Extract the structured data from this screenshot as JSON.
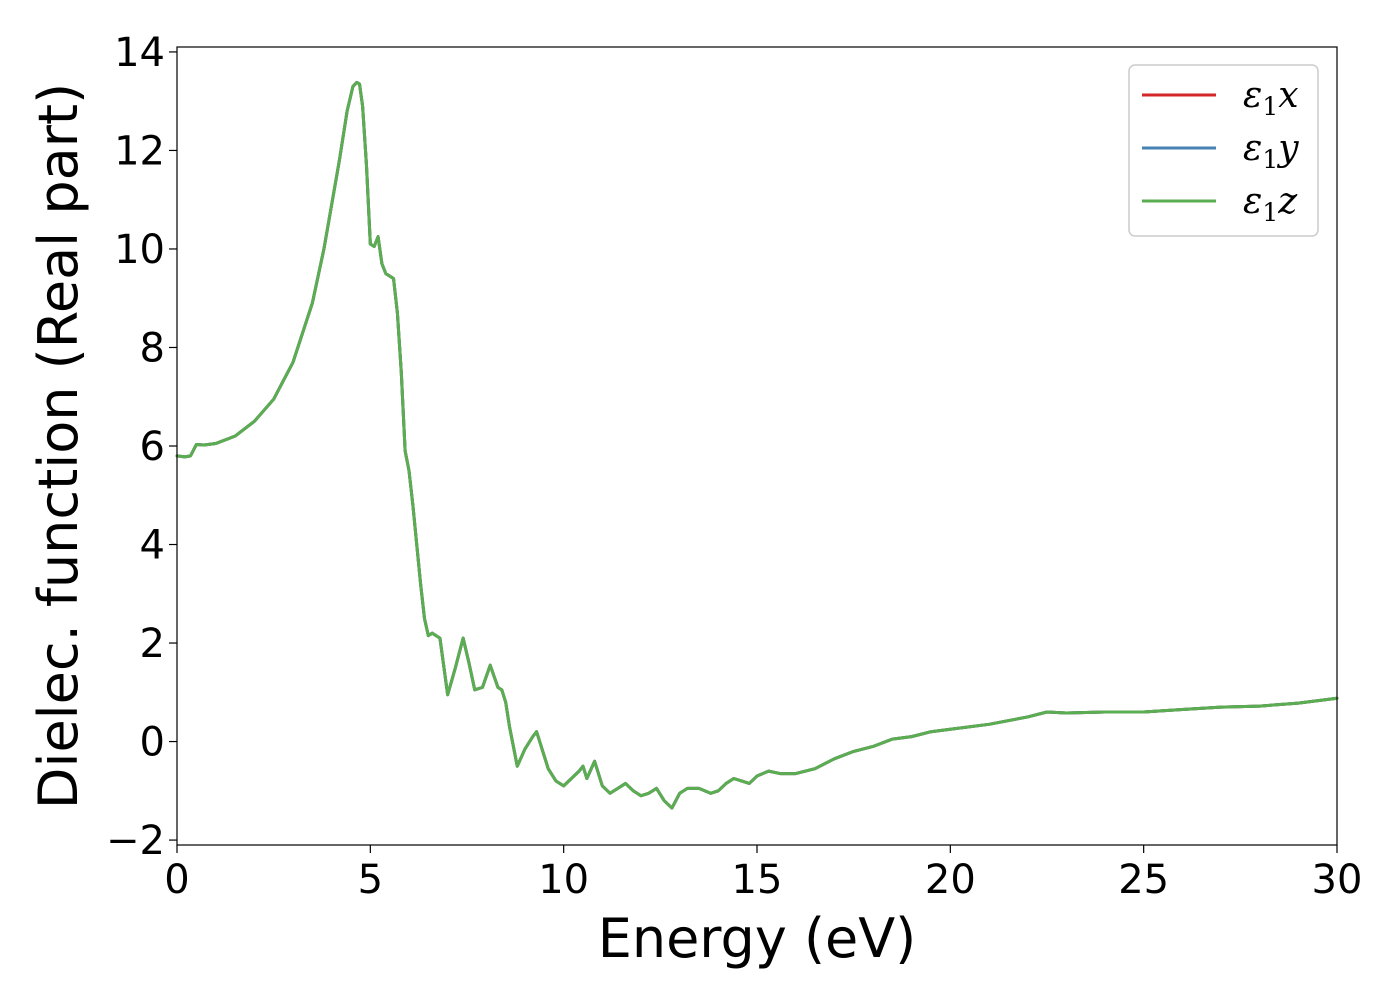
{
  "chart_data": {
    "type": "line",
    "title": "",
    "xlabel": "Energy (eV)",
    "ylabel": "Dielec. function (Real part)",
    "xlim": [
      0,
      30
    ],
    "ylim": [
      -2.1,
      14.1
    ],
    "xticks": [
      0,
      5,
      10,
      15,
      20,
      25,
      30
    ],
    "xtick_labels": [
      "0",
      "5",
      "10",
      "15",
      "20",
      "25",
      "30"
    ],
    "yticks": [
      -2,
      0,
      2,
      4,
      6,
      8,
      10,
      12,
      14
    ],
    "ytick_labels": [
      "−2",
      "0",
      "2",
      "4",
      "6",
      "8",
      "10",
      "12",
      "14"
    ],
    "grid": false,
    "legend_position": "top-right",
    "legend": [
      {
        "base": "ε",
        "sub": "1",
        "suffix": "x",
        "color": "#d62728"
      },
      {
        "base": "ε",
        "sub": "1",
        "suffix": "y",
        "color": "#4682b4"
      },
      {
        "base": "ε",
        "sub": "1",
        "suffix": "z",
        "color": "#5aad50"
      }
    ],
    "x": [
      0.0,
      0.2,
      0.35,
      0.5,
      0.7,
      1.0,
      1.5,
      2.0,
      2.5,
      3.0,
      3.5,
      3.8,
      4.0,
      4.2,
      4.4,
      4.55,
      4.65,
      4.72,
      4.8,
      4.9,
      5.0,
      5.1,
      5.2,
      5.3,
      5.4,
      5.5,
      5.6,
      5.7,
      5.8,
      5.9,
      6.0,
      6.1,
      6.2,
      6.3,
      6.4,
      6.5,
      6.6,
      6.8,
      7.0,
      7.2,
      7.4,
      7.55,
      7.7,
      7.9,
      8.1,
      8.3,
      8.4,
      8.5,
      8.6,
      8.8,
      9.0,
      9.2,
      9.3,
      9.5,
      9.6,
      9.8,
      10.0,
      10.2,
      10.4,
      10.5,
      10.6,
      10.8,
      11.0,
      11.2,
      11.4,
      11.6,
      11.8,
      12.0,
      12.2,
      12.4,
      12.6,
      12.8,
      13.0,
      13.2,
      13.5,
      13.8,
      14.0,
      14.2,
      14.4,
      14.6,
      14.8,
      15.0,
      15.3,
      15.6,
      16.0,
      16.5,
      17.0,
      17.5,
      18.0,
      18.5,
      19.0,
      19.5,
      20.0,
      21.0,
      22.0,
      22.5,
      23.0,
      24.0,
      25.0,
      26.0,
      27.0,
      28.0,
      29.0,
      30.0
    ],
    "series": [
      {
        "name": "ε1x",
        "color": "#d62728",
        "values": [
          5.8,
          5.78,
          5.8,
          6.03,
          6.02,
          6.05,
          6.2,
          6.5,
          6.95,
          7.7,
          8.9,
          10.0,
          10.9,
          11.8,
          12.8,
          13.3,
          13.38,
          13.35,
          12.9,
          11.7,
          10.1,
          10.05,
          10.25,
          9.7,
          9.5,
          9.45,
          9.4,
          8.7,
          7.5,
          5.9,
          5.5,
          4.8,
          4.0,
          3.2,
          2.5,
          2.15,
          2.2,
          2.1,
          0.95,
          1.5,
          2.1,
          1.6,
          1.05,
          1.1,
          1.55,
          1.1,
          1.05,
          0.8,
          0.3,
          -0.5,
          -0.15,
          0.1,
          0.2,
          -0.3,
          -0.55,
          -0.8,
          -0.9,
          -0.75,
          -0.6,
          -0.5,
          -0.75,
          -0.4,
          -0.9,
          -1.05,
          -0.95,
          -0.85,
          -1.0,
          -1.1,
          -1.05,
          -0.95,
          -1.2,
          -1.35,
          -1.05,
          -0.95,
          -0.95,
          -1.05,
          -1.0,
          -0.85,
          -0.75,
          -0.8,
          -0.85,
          -0.7,
          -0.6,
          -0.65,
          -0.65,
          -0.55,
          -0.35,
          -0.2,
          -0.1,
          0.05,
          0.1,
          0.2,
          0.25,
          0.35,
          0.5,
          0.6,
          0.58,
          0.6,
          0.6,
          0.65,
          0.7,
          0.72,
          0.78,
          0.88
        ]
      },
      {
        "name": "ε1y",
        "color": "#4682b4",
        "values": [
          5.8,
          5.78,
          5.8,
          6.03,
          6.02,
          6.05,
          6.2,
          6.5,
          6.95,
          7.7,
          8.9,
          10.0,
          10.9,
          11.8,
          12.8,
          13.3,
          13.38,
          13.35,
          12.9,
          11.7,
          10.1,
          10.05,
          10.25,
          9.7,
          9.5,
          9.45,
          9.4,
          8.7,
          7.5,
          5.9,
          5.5,
          4.8,
          4.0,
          3.2,
          2.5,
          2.15,
          2.2,
          2.1,
          0.95,
          1.5,
          2.1,
          1.6,
          1.05,
          1.1,
          1.55,
          1.1,
          1.05,
          0.8,
          0.3,
          -0.5,
          -0.15,
          0.1,
          0.2,
          -0.3,
          -0.55,
          -0.8,
          -0.9,
          -0.75,
          -0.6,
          -0.5,
          -0.75,
          -0.4,
          -0.9,
          -1.05,
          -0.95,
          -0.85,
          -1.0,
          -1.1,
          -1.05,
          -0.95,
          -1.2,
          -1.35,
          -1.05,
          -0.95,
          -0.95,
          -1.05,
          -1.0,
          -0.85,
          -0.75,
          -0.8,
          -0.85,
          -0.7,
          -0.6,
          -0.65,
          -0.65,
          -0.55,
          -0.35,
          -0.2,
          -0.1,
          0.05,
          0.1,
          0.2,
          0.25,
          0.35,
          0.5,
          0.6,
          0.58,
          0.6,
          0.6,
          0.65,
          0.7,
          0.72,
          0.78,
          0.88
        ]
      },
      {
        "name": "ε1z",
        "color": "#5aad50",
        "values": [
          5.8,
          5.78,
          5.8,
          6.03,
          6.02,
          6.05,
          6.2,
          6.5,
          6.95,
          7.7,
          8.9,
          10.0,
          10.9,
          11.8,
          12.8,
          13.3,
          13.38,
          13.35,
          12.9,
          11.7,
          10.1,
          10.05,
          10.25,
          9.7,
          9.5,
          9.45,
          9.4,
          8.7,
          7.5,
          5.9,
          5.5,
          4.8,
          4.0,
          3.2,
          2.5,
          2.15,
          2.2,
          2.1,
          0.95,
          1.5,
          2.1,
          1.6,
          1.05,
          1.1,
          1.55,
          1.1,
          1.05,
          0.8,
          0.3,
          -0.5,
          -0.15,
          0.1,
          0.2,
          -0.3,
          -0.55,
          -0.8,
          -0.9,
          -0.75,
          -0.6,
          -0.5,
          -0.75,
          -0.4,
          -0.9,
          -1.05,
          -0.95,
          -0.85,
          -1.0,
          -1.1,
          -1.05,
          -0.95,
          -1.2,
          -1.35,
          -1.05,
          -0.95,
          -0.95,
          -1.05,
          -1.0,
          -0.85,
          -0.75,
          -0.8,
          -0.85,
          -0.7,
          -0.6,
          -0.65,
          -0.65,
          -0.55,
          -0.35,
          -0.2,
          -0.1,
          0.05,
          0.1,
          0.2,
          0.25,
          0.35,
          0.5,
          0.6,
          0.58,
          0.6,
          0.6,
          0.65,
          0.7,
          0.72,
          0.78,
          0.88
        ]
      }
    ]
  }
}
